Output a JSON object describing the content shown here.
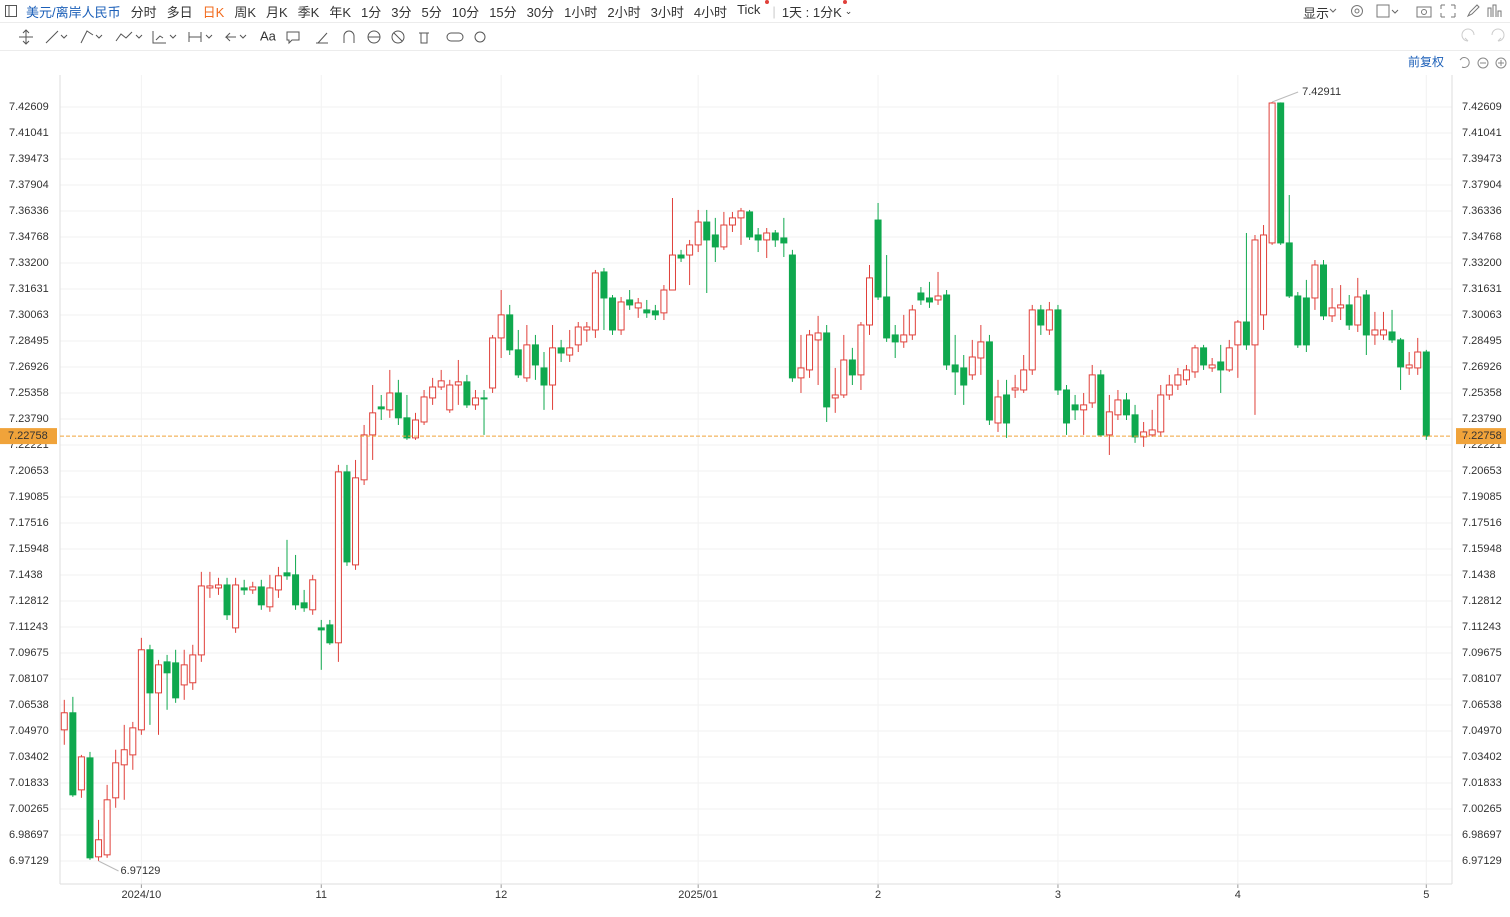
{
  "toolbar": {
    "symbol": "美元/离岸人民币",
    "periods": [
      "分时",
      "多日",
      "日K",
      "周K",
      "月K",
      "季K",
      "年K",
      "1分",
      "3分",
      "5分",
      "10分",
      "15分",
      "30分",
      "1小时",
      "2小时",
      "3小时",
      "4小时",
      "Tick"
    ],
    "active_period": 2,
    "range": "1天 : 1分K",
    "display": "显示",
    "text_tool": "Aa"
  },
  "chart_header": {
    "adjust": "前复权"
  },
  "chart_data": {
    "type": "candlestick",
    "open": [
      7.0504,
      7.0607,
      7.0142,
      7.0335,
      6.9738,
      6.975,
      7.0094,
      7.0293,
      7.0353,
      7.0504,
      7.0987,
      7.0727,
      7.0914,
      7.0908,
      7.0775,
      7.0788,
      7.0956,
      7.136,
      7.136,
      7.1378,
      7.1119,
      7.136,
      7.1348,
      7.1366,
      7.1246,
      7.1348,
      7.1451,
      7.1439,
      7.127,
      7.1228,
      7.1119,
      7.1137,
      7.1029,
      7.206,
      7.1499,
      7.2012,
      7.2283,
      7.2452,
      7.2434,
      7.2536,
      7.2386,
      7.2265,
      7.2361,
      7.2506,
      7.2572,
      7.2434,
      7.2584,
      7.2603,
      7.2464,
      7.2506,
      7.2566,
      7.2868,
      7.3007,
      7.2796,
      7.2627,
      7.2826,
      7.2687,
      7.2584,
      7.2808,
      7.2765,
      7.2826,
      7.2916,
      7.2916,
      7.3266,
      7.3109,
      7.2916,
      7.3097,
      7.3049,
      7.3037,
      7.3031,
      7.3019,
      7.3157,
      7.3368,
      7.3368,
      7.3429,
      7.3567,
      7.3489,
      7.3417,
      7.3549,
      7.3592,
      7.3628,
      7.3489,
      7.3459,
      7.3501,
      7.3471,
      7.3368,
      7.2627,
      7.2675,
      7.2856,
      7.2898,
      7.2506,
      7.2524,
      7.2735,
      7.2645,
      7.2946,
      7.3579,
      7.3115,
      7.2886,
      7.2844,
      7.2886,
      7.3139,
      7.3109,
      7.3097,
      7.3127,
      7.2705,
      7.2687,
      7.2645,
      7.2747,
      7.2844,
      7.2355,
      7.2524,
      7.2554,
      7.2554,
      7.2675,
      7.3037,
      7.2916,
      7.3037,
      7.2554,
      7.2464,
      7.2434,
      7.2476,
      7.2645,
      7.2283,
      7.2404,
      7.2494,
      7.2404,
      7.2271,
      7.2283,
      7.2301,
      7.2524,
      7.2584,
      7.2615,
      7.2663,
      7.2808,
      7.2687,
      7.2723,
      7.2675,
      7.2826,
      7.2964,
      7.2826,
      7.3007,
      7.3441,
      7.4285,
      7.3441,
      7.3121,
      7.3109,
      7.3109,
      7.3308,
      7.3001,
      7.3049,
      7.3067,
      7.2946,
      7.3127,
      7.2886,
      7.2886,
      7.2904,
      7.2856,
      7.2687,
      7.2687,
      7.2783
    ],
    "high": [
      7.0685,
      7.0703,
      7.0353,
      7.0371,
      6.9961,
      7.0172,
      7.0384,
      7.0534,
      7.0552,
      7.1059,
      7.1017,
      7.0926,
      7.0956,
      7.0987,
      7.0987,
      7.1017,
      7.1457,
      7.1457,
      7.1421,
      7.1421,
      7.1421,
      7.1409,
      7.1397,
      7.1409,
      7.1439,
      7.1487,
      7.165,
      7.1559,
      7.1348,
      7.1439,
      7.1167,
      7.1167,
      7.2102,
      7.2102,
      7.2132,
      7.2343,
      7.2584,
      7.2524,
      7.2675,
      7.2615,
      7.2524,
      7.2416,
      7.2554,
      7.2627,
      7.2675,
      7.2615,
      7.2735,
      7.2645,
      7.2554,
      7.2554,
      7.2886,
      7.3157,
      7.3067,
      7.2916,
      7.2946,
      7.2886,
      7.2783,
      7.2946,
      7.2856,
      7.2916,
      7.2964,
      7.2964,
      7.3278,
      7.329,
      7.3127,
      7.3115,
      7.3157,
      7.3109,
      7.3097,
      7.3067,
      7.3187,
      7.3712,
      7.3399,
      7.3459,
      7.364,
      7.364,
      7.3592,
      7.3628,
      7.3628,
      7.3652,
      7.364,
      7.3531,
      7.3531,
      7.3519,
      7.3592,
      7.3399,
      7.2886,
      7.2916,
      7.3001,
      7.2946,
      7.2687,
      7.2886,
      7.2808,
      7.2964,
      7.3308,
      7.3682,
      7.3368,
      7.2946,
      7.3007,
      7.3067,
      7.3175,
      7.3206,
      7.3266,
      7.3157,
      7.2886,
      7.2765,
      7.2856,
      7.2946,
      7.2886,
      7.2615,
      7.2615,
      7.2645,
      7.2765,
      7.3067,
      7.3067,
      7.3085,
      7.3067,
      7.2584,
      7.2524,
      7.2536,
      7.2705,
      7.2675,
      7.2524,
      7.2554,
      7.2536,
      7.2464,
      7.2361,
      7.2434,
      7.2584,
      7.2645,
      7.2687,
      7.2705,
      7.2826,
      7.2826,
      7.2747,
      7.2826,
      7.2856,
      7.2976,
      7.3501,
      7.3489,
      7.3549,
      7.42911,
      7.4289,
      7.373,
      7.3145,
      7.3218,
      7.3338,
      7.3338,
      7.3169,
      7.3187,
      7.3127,
      7.323,
      7.3157,
      7.3025,
      7.3025,
      7.3037,
      7.2868,
      7.2783,
      7.2868,
      7.2796
    ],
    "low": [
      7.0414,
      7.01,
      7.0094,
      6.972,
      6.97129,
      6.9732,
      7.0034,
      7.0082,
      7.0263,
      7.0474,
      7.0534,
      7.0474,
      7.0625,
      7.0667,
      7.0685,
      7.0745,
      7.0914,
      7.13,
      7.1318,
      7.1167,
      7.1089,
      7.1318,
      7.1324,
      7.1228,
      7.1216,
      7.13,
      7.1409,
      7.1228,
      7.1216,
      7.1198,
      7.0866,
      7.1017,
      7.0914,
      7.1493,
      7.1469,
      7.1981,
      7.2132,
      7.2373,
      7.2386,
      7.2343,
      7.2253,
      7.2253,
      7.2343,
      7.2464,
      7.2554,
      7.2416,
      7.2464,
      7.2446,
      7.2434,
      7.2283,
      7.2536,
      7.2747,
      7.2765,
      7.2627,
      7.2603,
      7.2615,
      7.2434,
      7.2434,
      7.2723,
      7.2723,
      7.2783,
      7.2844,
      7.2868,
      7.2916,
      7.2886,
      7.2886,
      7.3037,
      7.2989,
      7.2989,
      7.2976,
      7.2976,
      7.3157,
      7.3326,
      7.3187,
      7.3386,
      7.3139,
      7.3326,
      7.3399,
      7.3507,
      7.3429,
      7.3459,
      7.3386,
      7.335,
      7.3417,
      7.3356,
      7.2603,
      7.2536,
      7.2627,
      7.2584,
      7.2361,
      7.2416,
      7.2506,
      7.2584,
      7.2554,
      7.2886,
      7.3097,
      7.2844,
      7.2747,
      7.2808,
      7.2856,
      7.3067,
      7.3049,
      7.3067,
      7.2675,
      7.2524,
      7.2464,
      7.2615,
      7.2645,
      7.2343,
      7.2301,
      7.2265,
      7.2506,
      7.2536,
      7.2645,
      7.2886,
      7.2886,
      7.2524,
      7.2283,
      7.2373,
      7.2283,
      7.2446,
      7.2271,
      7.2162,
      7.2373,
      7.2373,
      7.2235,
      7.2211,
      7.2271,
      7.2271,
      7.2494,
      7.2554,
      7.2584,
      7.2627,
      7.2675,
      7.2663,
      7.2536,
      7.2663,
      7.2627,
      7.2796,
      7.2404,
      7.2916,
      7.3429,
      7.3429,
      7.3109,
      7.2808,
      7.2783,
      7.3037,
      7.2976,
      7.2964,
      7.2976,
      7.2916,
      7.2904,
      7.2765,
      7.2826,
      7.2856,
      7.2838,
      7.2554,
      7.2645,
      7.2645,
      7.2253
    ],
    "close": [
      7.0607,
      7.0112,
      7.0341,
      6.9732,
      6.9841,
      7.0082,
      7.0305,
      7.0384,
      7.0516,
      7.0987,
      7.0727,
      7.0896,
      7.0848,
      7.0697,
      7.0896,
      7.0956,
      7.1372,
      7.1372,
      7.1378,
      7.1198,
      7.1378,
      7.1348,
      7.1366,
      7.1258,
      7.136,
      7.1433,
      7.1433,
      7.1258,
      7.124,
      7.1409,
      7.1107,
      7.1029,
      7.206,
      7.1517,
      7.2024,
      7.2283,
      7.2416,
      7.244,
      7.2536,
      7.2386,
      7.2265,
      7.2373,
      7.2512,
      7.2572,
      7.2609,
      7.2584,
      7.2603,
      7.2464,
      7.2506,
      7.25,
      7.2868,
      7.3007,
      7.2796,
      7.2645,
      7.2826,
      7.2705,
      7.2584,
      7.2808,
      7.2777,
      7.2808,
      7.2934,
      7.2934,
      7.326,
      7.3109,
      7.2916,
      7.3085,
      7.3067,
      7.3079,
      7.3019,
      7.3007,
      7.3157,
      7.3368,
      7.335,
      7.3429,
      7.3567,
      7.3459,
      7.3417,
      7.3549,
      7.3592,
      7.3634,
      7.3477,
      7.3459,
      7.3501,
      7.3459,
      7.3441,
      7.2627,
      7.2687,
      7.2886,
      7.2898,
      7.2452,
      7.2524,
      7.2735,
      7.2645,
      7.2946,
      7.323,
      7.3115,
      7.2868,
      7.2844,
      7.2886,
      7.3037,
      7.3097,
      7.3085,
      7.3121,
      7.2705,
      7.2663,
      7.2584,
      7.2753,
      7.2844,
      7.2373,
      7.2512,
      7.2355,
      7.2566,
      7.2675,
      7.3037,
      7.2946,
      7.3037,
      7.2554,
      7.2355,
      7.2434,
      7.2464,
      7.2645,
      7.2283,
      7.2422,
      7.2494,
      7.2404,
      7.2271,
      7.2301,
      7.2313,
      7.2524,
      7.2584,
      7.2645,
      7.2675,
      7.2808,
      7.2705,
      7.2705,
      7.2675,
      7.2808,
      7.2964,
      7.2826,
      7.3459,
      7.3489,
      7.4285,
      7.3441,
      7.3121,
      7.2826,
      7.2826,
      7.3308,
      7.3001,
      7.3049,
      7.3067,
      7.2946,
      7.3115,
      7.2886,
      7.2916,
      7.2916,
      7.2856,
      7.2693,
      7.2705,
      7.2783,
      7.22758
    ],
    "up_color": "#e0403a",
    "down_color": "#0fa84e",
    "xlim": [
      -0.5,
      162
    ],
    "xticks": [
      {
        "value": 9,
        "label": "2024/10"
      },
      {
        "value": 30,
        "label": "11"
      },
      {
        "value": 51,
        "label": "12"
      },
      {
        "value": 74,
        "label": "2025/01"
      },
      {
        "value": 95,
        "label": "2"
      },
      {
        "value": 116,
        "label": "3"
      },
      {
        "value": 137,
        "label": "4"
      },
      {
        "value": 159,
        "label": "5"
      }
    ],
    "ylim": [
      6.95742,
      7.44539
    ],
    "yticks": [
      6.97129,
      6.98697,
      7.00265,
      7.01833,
      7.03402,
      {
        "value": 7.0497,
        "label": "7.04970"
      },
      7.06538,
      7.08107,
      7.09675,
      7.11243,
      7.12812,
      7.1438,
      7.15948,
      7.17516,
      7.19085,
      7.20653,
      7.22221,
      {
        "value": 7.2379,
        "label": "7.23790"
      },
      7.25358,
      7.26926,
      7.28495,
      7.30063,
      7.31631,
      {
        "value": 7.332,
        "label": "7.33200"
      },
      7.34768,
      7.36336,
      7.37904,
      7.39473,
      7.41041,
      7.42609
    ],
    "grid": true,
    "last_price": 7.22758,
    "last_price_color": "#f0a33a",
    "max_index": 141,
    "min_index": 4
  }
}
